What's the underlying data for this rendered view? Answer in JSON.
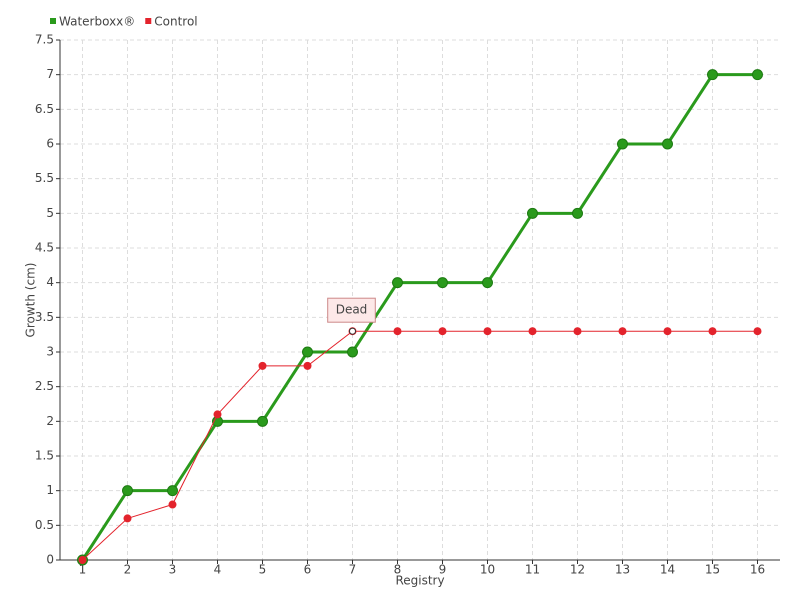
{
  "chart_data": {
    "type": "line",
    "x_label": "Registry",
    "y_label": "Growth (cm)",
    "categories": [
      "1",
      "2",
      "3",
      "4",
      "5",
      "6",
      "7",
      "8",
      "9",
      "10",
      "11",
      "12",
      "13",
      "14",
      "15",
      "16"
    ],
    "series": [
      {
        "name": "Waterboxx®",
        "color": "#2a9a1c",
        "values": [
          0,
          1,
          1,
          2,
          2,
          3,
          3,
          4,
          4,
          4,
          5,
          5,
          6,
          6,
          7,
          7
        ]
      },
      {
        "name": "Control",
        "color": "#e3232c",
        "values": [
          0,
          0.6,
          0.8,
          2.1,
          2.8,
          2.8,
          3.3,
          3.3,
          3.3,
          3.3,
          3.3,
          3.3,
          3.3,
          3.3,
          3.3,
          3.3
        ]
      }
    ],
    "annotation": {
      "text": "Dead",
      "category": "7"
    },
    "ylim": [
      0,
      7.5
    ],
    "yticks": [
      0,
      0.5,
      1,
      1.5,
      2,
      2.5,
      3,
      3.5,
      4,
      4.5,
      5,
      5.5,
      6,
      6.5,
      7,
      7.5
    ],
    "grid": true,
    "legend": "top-left"
  }
}
